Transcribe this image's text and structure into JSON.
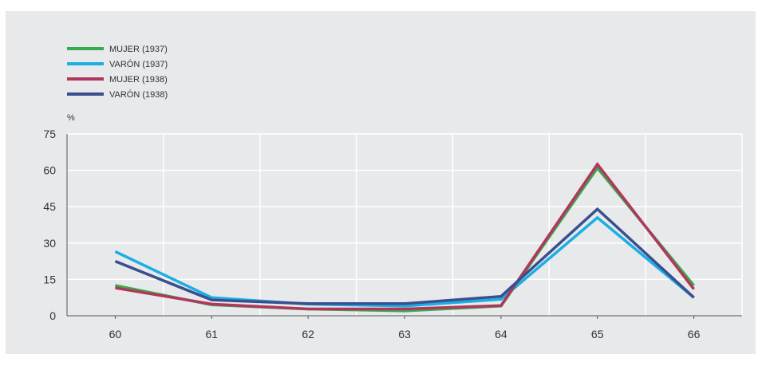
{
  "chart_data": {
    "type": "line",
    "categories": [
      "60",
      "61",
      "62",
      "63",
      "64",
      "65",
      "66"
    ],
    "y_unit": "%",
    "ylim": [
      0,
      75
    ],
    "yticks": [
      "0",
      "15",
      "30",
      "45",
      "60",
      "75"
    ],
    "grid": true,
    "legend_position": "top-left",
    "series": [
      {
        "name": "MUJER (1937)",
        "color": "#3aaa4f",
        "values": [
          12.5,
          4.5,
          2.8,
          2.0,
          4.0,
          61.0,
          12.5
        ]
      },
      {
        "name": "VARÓN (1937)",
        "color": "#1aaee5",
        "values": [
          26.5,
          7.5,
          4.8,
          4.0,
          6.8,
          40.5,
          7.5
        ]
      },
      {
        "name": "MUJER (1938)",
        "color": "#b0375c",
        "values": [
          11.5,
          4.8,
          2.8,
          2.8,
          4.2,
          62.5,
          11.0
        ]
      },
      {
        "name": "VARÓN (1938)",
        "color": "#3a4f8e",
        "values": [
          22.5,
          6.5,
          5.0,
          5.0,
          8.0,
          44.0,
          7.5
        ]
      }
    ]
  }
}
